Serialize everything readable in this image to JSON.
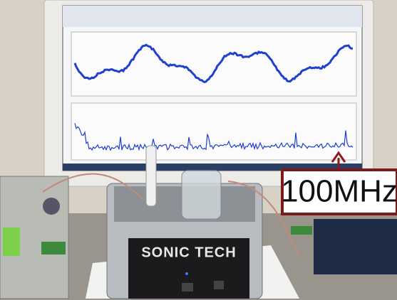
{
  "annotation": "100MHz",
  "device_label": "SONIC TECH"
}
